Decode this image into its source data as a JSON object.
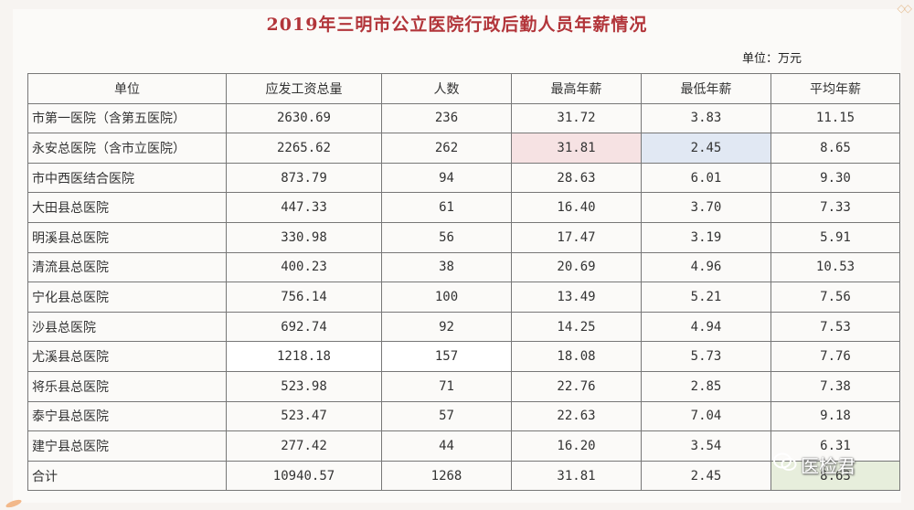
{
  "title": "2019年三明市公立医院行政后勤人员年薪情况",
  "unit_label": "单位：万元",
  "columns": [
    "单位",
    "应发工资总量",
    "人数",
    "最高年薪",
    "最低年薪",
    "平均年薪"
  ],
  "rows": [
    {
      "name": "市第一医院（含第五医院）",
      "total": "2630.69",
      "count": "236",
      "max": "31.72",
      "min": "3.83",
      "avg": "11.15"
    },
    {
      "name": "永安总医院（含市立医院）",
      "total": "2265.62",
      "count": "262",
      "max": "31.81",
      "min": "2.45",
      "avg": "8.65"
    },
    {
      "name": "市中西医结合医院",
      "total": "873.79",
      "count": "94",
      "max": "28.63",
      "min": "6.01",
      "avg": "9.30"
    },
    {
      "name": "大田县总医院",
      "total": "447.33",
      "count": "61",
      "max": "16.40",
      "min": "3.70",
      "avg": "7.33"
    },
    {
      "name": "明溪县总医院",
      "total": "330.98",
      "count": "56",
      "max": "17.47",
      "min": "3.19",
      "avg": "5.91"
    },
    {
      "name": "清流县总医院",
      "total": "400.23",
      "count": "38",
      "max": "20.69",
      "min": "4.96",
      "avg": "10.53"
    },
    {
      "name": "宁化县总医院",
      "total": "756.14",
      "count": "100",
      "max": "13.49",
      "min": "5.21",
      "avg": "7.56"
    },
    {
      "name": "沙县总医院",
      "total": "692.74",
      "count": "92",
      "max": "14.25",
      "min": "4.94",
      "avg": "7.53"
    },
    {
      "name": "尤溪县总医院",
      "total": "1218.18",
      "count": "157",
      "max": "18.08",
      "min": "5.73",
      "avg": "7.76"
    },
    {
      "name": "将乐县总医院",
      "total": "523.98",
      "count": "71",
      "max": "22.76",
      "min": "2.85",
      "avg": "7.38"
    },
    {
      "name": "泰宁县总医院",
      "total": "523.47",
      "count": "57",
      "max": "22.63",
      "min": "7.04",
      "avg": "9.18"
    },
    {
      "name": "建宁县总医院",
      "total": "277.42",
      "count": "44",
      "max": "16.20",
      "min": "3.54",
      "avg": "6.31"
    },
    {
      "name": "合计",
      "total": "10940.57",
      "count": "1268",
      "max": "31.81",
      "min": "2.45",
      "avg": "8.63"
    }
  ],
  "highlight_colors": {
    "max": "#f6e2e3",
    "min": "#e1e8f3",
    "emphasis": "#ffffff",
    "total_avg": "#e7eedc"
  },
  "watermark": {
    "text": "医检君",
    "icon": "wechat-icon"
  }
}
